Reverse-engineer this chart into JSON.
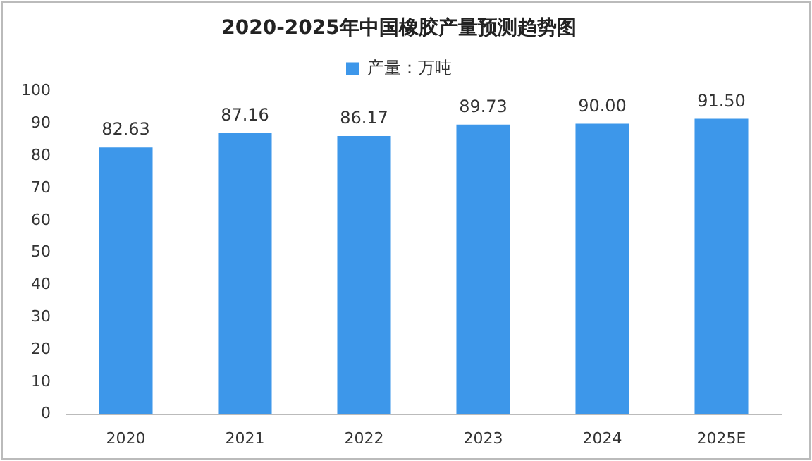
{
  "chart_data": {
    "type": "bar",
    "title": "2020-2025年中国橡胶产量预测趋势图",
    "categories": [
      "2020",
      "2021",
      "2022",
      "2023",
      "2024",
      "2025E"
    ],
    "series": [
      {
        "name": "产量：万吨",
        "color": "#3d97ea",
        "values": [
          82.63,
          87.16,
          86.17,
          89.73,
          90.0,
          91.5
        ]
      }
    ],
    "value_labels": [
      "82.63",
      "87.16",
      "86.17",
      "89.73",
      "90.00",
      "91.50"
    ],
    "ylim": [
      0,
      100
    ],
    "yticks": [
      0,
      10,
      20,
      30,
      40,
      50,
      60,
      70,
      80,
      90,
      100
    ],
    "grid": false,
    "legend": "top"
  }
}
